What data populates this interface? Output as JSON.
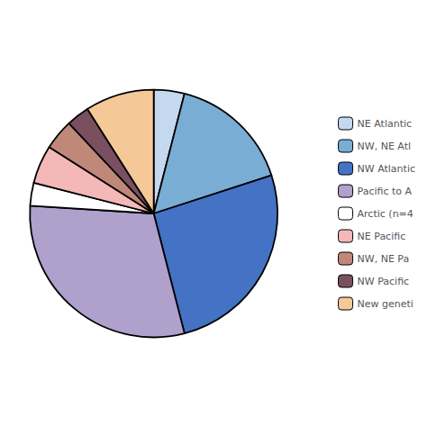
{
  "chart_data": {
    "type": "pie",
    "categories": [
      "NE Atlantic",
      "NW, NE Atl",
      "NW Atlantic",
      "Pacific to A",
      "Arctic (n=4",
      "NE Pacific",
      "NW, NE Pa",
      "NW Pacific",
      "New geneti"
    ],
    "values": [
      4,
      16,
      26,
      30,
      3,
      5,
      4,
      3,
      9
    ],
    "colors": [
      "#c5d9ee",
      "#7aadd4",
      "#4472c4",
      "#b0a0cc",
      "#ffffff",
      "#f4b8b8",
      "#c08878",
      "#7a5060",
      "#f5c897"
    ],
    "legend": "right"
  }
}
